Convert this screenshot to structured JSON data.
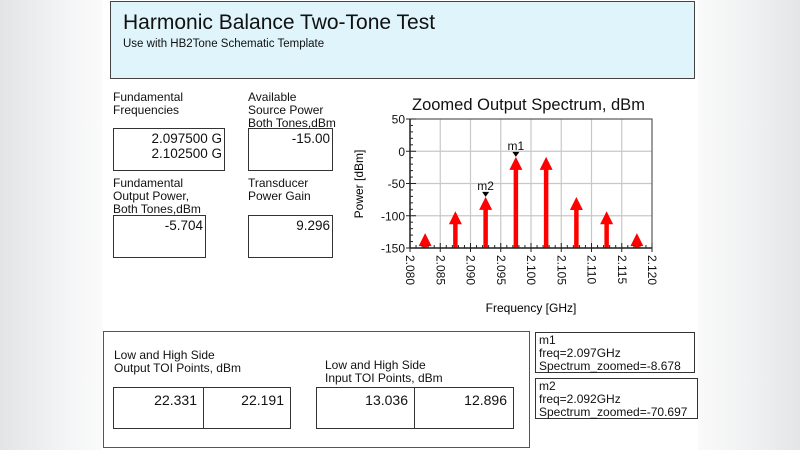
{
  "header": {
    "title": "Harmonic Balance Two-Tone Test",
    "subtitle": "Use with HB2Tone Schematic Template"
  },
  "fields": {
    "fundamental_frequencies": {
      "label": "Fundamental\nFrequencies",
      "value": "2.097500 G\n2.102500 G"
    },
    "available_source_power": {
      "label": "Available\nSource Power\nBoth Tones,dBm",
      "value": "-15.00"
    },
    "fundamental_output_power": {
      "label": "Fundamental\nOutput Power,\nBoth Tones,dBm",
      "value": "-5.704"
    },
    "transducer_power_gain": {
      "label": "Transducer\nPower Gain",
      "value": "9.296"
    }
  },
  "toi": {
    "output": {
      "label": "Low and High Side\nOutput TOI Points, dBm",
      "low": "22.331",
      "high": "22.191"
    },
    "input": {
      "label": "Low and High Side\nInput TOI Points, dBm",
      "low": "13.036",
      "high": "12.896"
    }
  },
  "markers": [
    {
      "name": "m1",
      "freq": "freq=2.097GHz",
      "value": "Spectrum_zoomed=-8.678",
      "text": "m1\nfreq=2.097GHz\nSpectrum_zoomed=-8.678"
    },
    {
      "name": "m2",
      "freq": "freq=2.092GHz",
      "value": "Spectrum_zoomed=-70.697",
      "text": "m2\nfreq=2.092GHz\nSpectrum_zoomed=-70.697"
    }
  ],
  "colors": {
    "title_bg": "#dff4fb",
    "bar": "#ff0000",
    "grid": "#c8c8c8"
  },
  "chart_data": {
    "type": "bar",
    "title": "Zoomed Output Spectrum, dBm",
    "xlabel": "Frequency [GHz]",
    "ylabel": "Power [dBm]",
    "xlim": [
      2.08,
      2.12
    ],
    "ylim": [
      -150,
      50
    ],
    "xticks": [
      "2.080",
      "2.085",
      "2.090",
      "2.095",
      "2.100",
      "2.105",
      "2.110",
      "2.115",
      "2.120"
    ],
    "yticks": [
      "50",
      "0",
      "-50",
      "-100",
      "-150"
    ],
    "grid": true,
    "x": [
      2.0825,
      2.0875,
      2.0925,
      2.0975,
      2.1025,
      2.1075,
      2.1125,
      2.1175
    ],
    "values": [
      -127,
      -93,
      -70.7,
      -8.7,
      -8.8,
      -71,
      -93,
      -127
    ],
    "markers": [
      {
        "name": "m1",
        "x": 2.0975,
        "y": -8.678
      },
      {
        "name": "m2",
        "x": 2.0925,
        "y": -70.697
      }
    ]
  }
}
